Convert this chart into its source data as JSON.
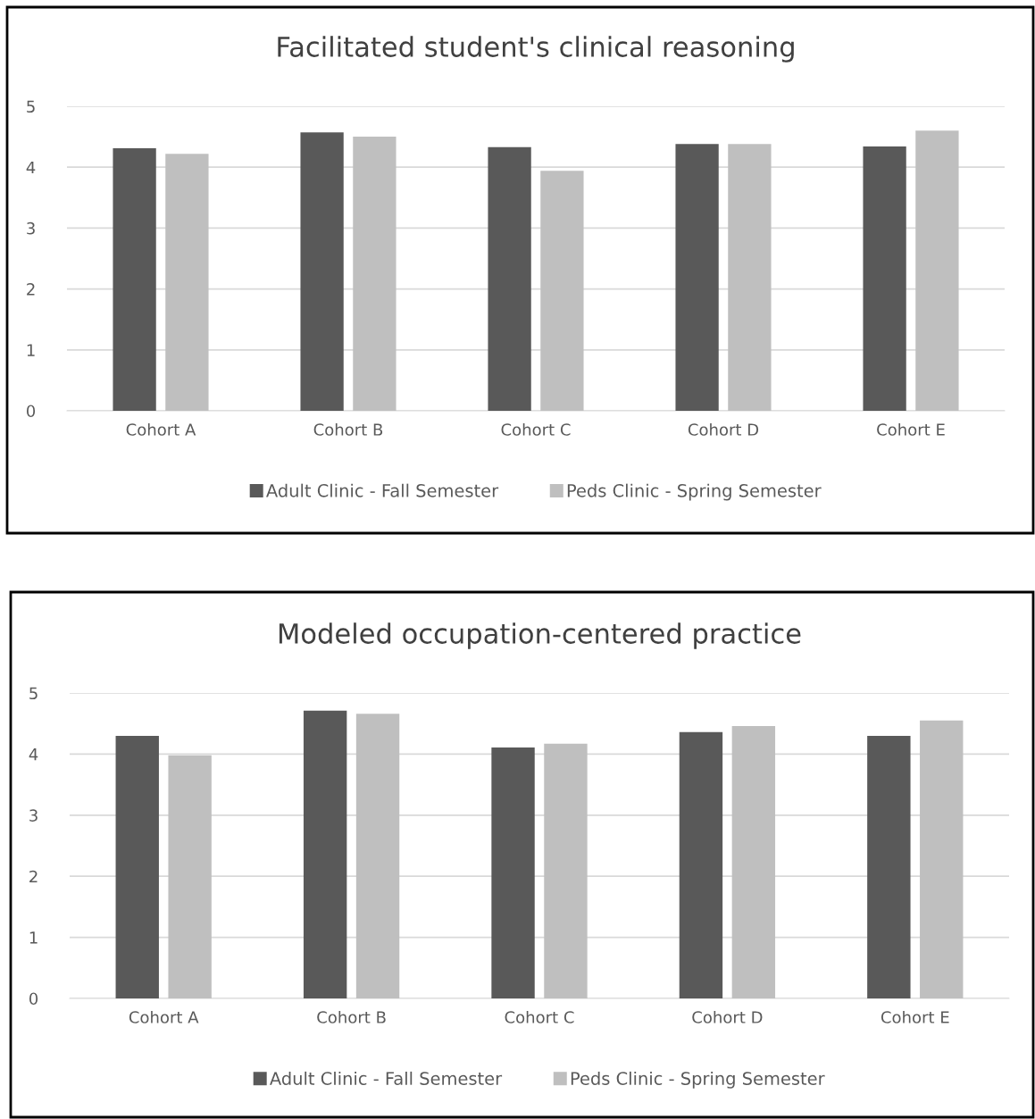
{
  "chart_data": [
    {
      "type": "bar",
      "title": "Facilitated student's clinical reasoning",
      "categories": [
        "Cohort A",
        "Cohort B",
        "Cohort C",
        "Cohort D",
        "Cohort E"
      ],
      "series": [
        {
          "name": "Adult Clinic - Fall Semester",
          "color": "#595959",
          "values": [
            4.31,
            4.57,
            4.33,
            4.38,
            4.34
          ]
        },
        {
          "name": "Peds Clinic - Spring Semester",
          "color": "#bfbfbf",
          "values": [
            4.22,
            4.5,
            3.94,
            4.38,
            4.6
          ]
        }
      ],
      "ylim": [
        0,
        5
      ],
      "yticks": [
        0,
        1,
        2,
        3,
        4,
        5
      ],
      "grid": "y",
      "legend": "bottom"
    },
    {
      "type": "bar",
      "title": "Modeled occupation-centered practice",
      "categories": [
        "Cohort A",
        "Cohort B",
        "Cohort C",
        "Cohort D",
        "Cohort E"
      ],
      "series": [
        {
          "name": "Adult Clinic - Fall Semester",
          "color": "#595959",
          "values": [
            4.3,
            4.71,
            4.11,
            4.36,
            4.3
          ]
        },
        {
          "name": "Peds Clinic - Spring Semester",
          "color": "#bfbfbf",
          "values": [
            3.98,
            4.66,
            4.17,
            4.46,
            4.55
          ]
        }
      ],
      "ylim": [
        0,
        5
      ],
      "yticks": [
        0,
        1,
        2,
        3,
        4,
        5
      ],
      "grid": "y",
      "legend": "bottom"
    }
  ]
}
